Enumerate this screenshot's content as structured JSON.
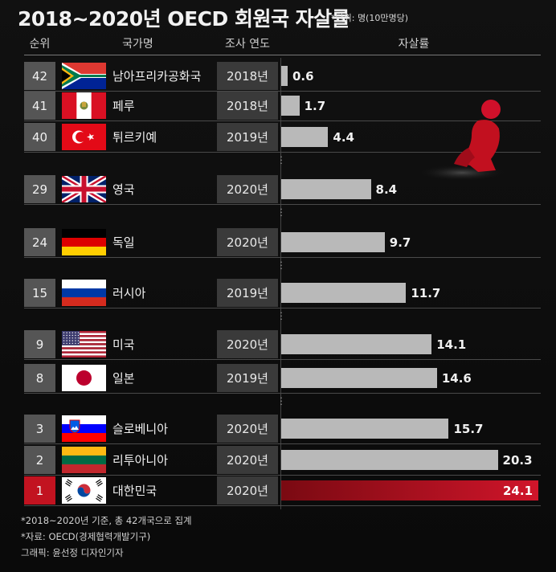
{
  "title": "2018~2020년 OECD 회원국 자살률",
  "unit_note": "*단위: 명(10만명당)",
  "headers": {
    "rank": "순위",
    "country": "국가명",
    "year": "조사 연도",
    "rate": "자살률"
  },
  "colors": {
    "highlight": "#c21320",
    "bar": "#b9b9b9",
    "background": "#0b0b0b"
  },
  "chart_data": {
    "type": "bar",
    "orientation": "horizontal",
    "title": "2018~2020년 OECD 회원국 자살률",
    "unit": "*단위: 명(10만명당)",
    "categories": [
      "남아프리카공화국",
      "페루",
      "튀르키예",
      "영국",
      "독일",
      "러시아",
      "미국",
      "일본",
      "슬로베니아",
      "리투아니아",
      "대한민국"
    ],
    "ranks": [
      "42",
      "41",
      "40",
      "29",
      "24",
      "15",
      "9",
      "8",
      "3",
      "2",
      "1"
    ],
    "years": [
      "2018년",
      "2018년",
      "2019년",
      "2020년",
      "2020년",
      "2019년",
      "2020년",
      "2019년",
      "2020년",
      "2020년",
      "2020년"
    ],
    "values": [
      0.6,
      1.7,
      4.4,
      8.4,
      9.7,
      11.7,
      14.1,
      14.6,
      15.7,
      20.3,
      24.1
    ],
    "value_labels": [
      "0.6",
      "1.7",
      "4.4",
      "8.4",
      "9.7",
      "11.7",
      "14.1",
      "14.6",
      "15.7",
      "20.3",
      "24.1"
    ],
    "flags": [
      "south-africa-flag",
      "peru-flag",
      "turkey-flag",
      "uk-flag",
      "germany-flag",
      "russia-flag",
      "usa-flag",
      "japan-flag",
      "slovenia-flag",
      "lithuania-flag",
      "korea-flag"
    ],
    "highlight_index": 10,
    "xlim": [
      0,
      24.1
    ],
    "grid": false,
    "legend": "none"
  },
  "notes": [
    "*2018~2020년 기준, 총 42개국으로 집계",
    "*자료: OECD(경제협력개발기구)",
    "그래픽: 윤선정 디자인기자"
  ]
}
